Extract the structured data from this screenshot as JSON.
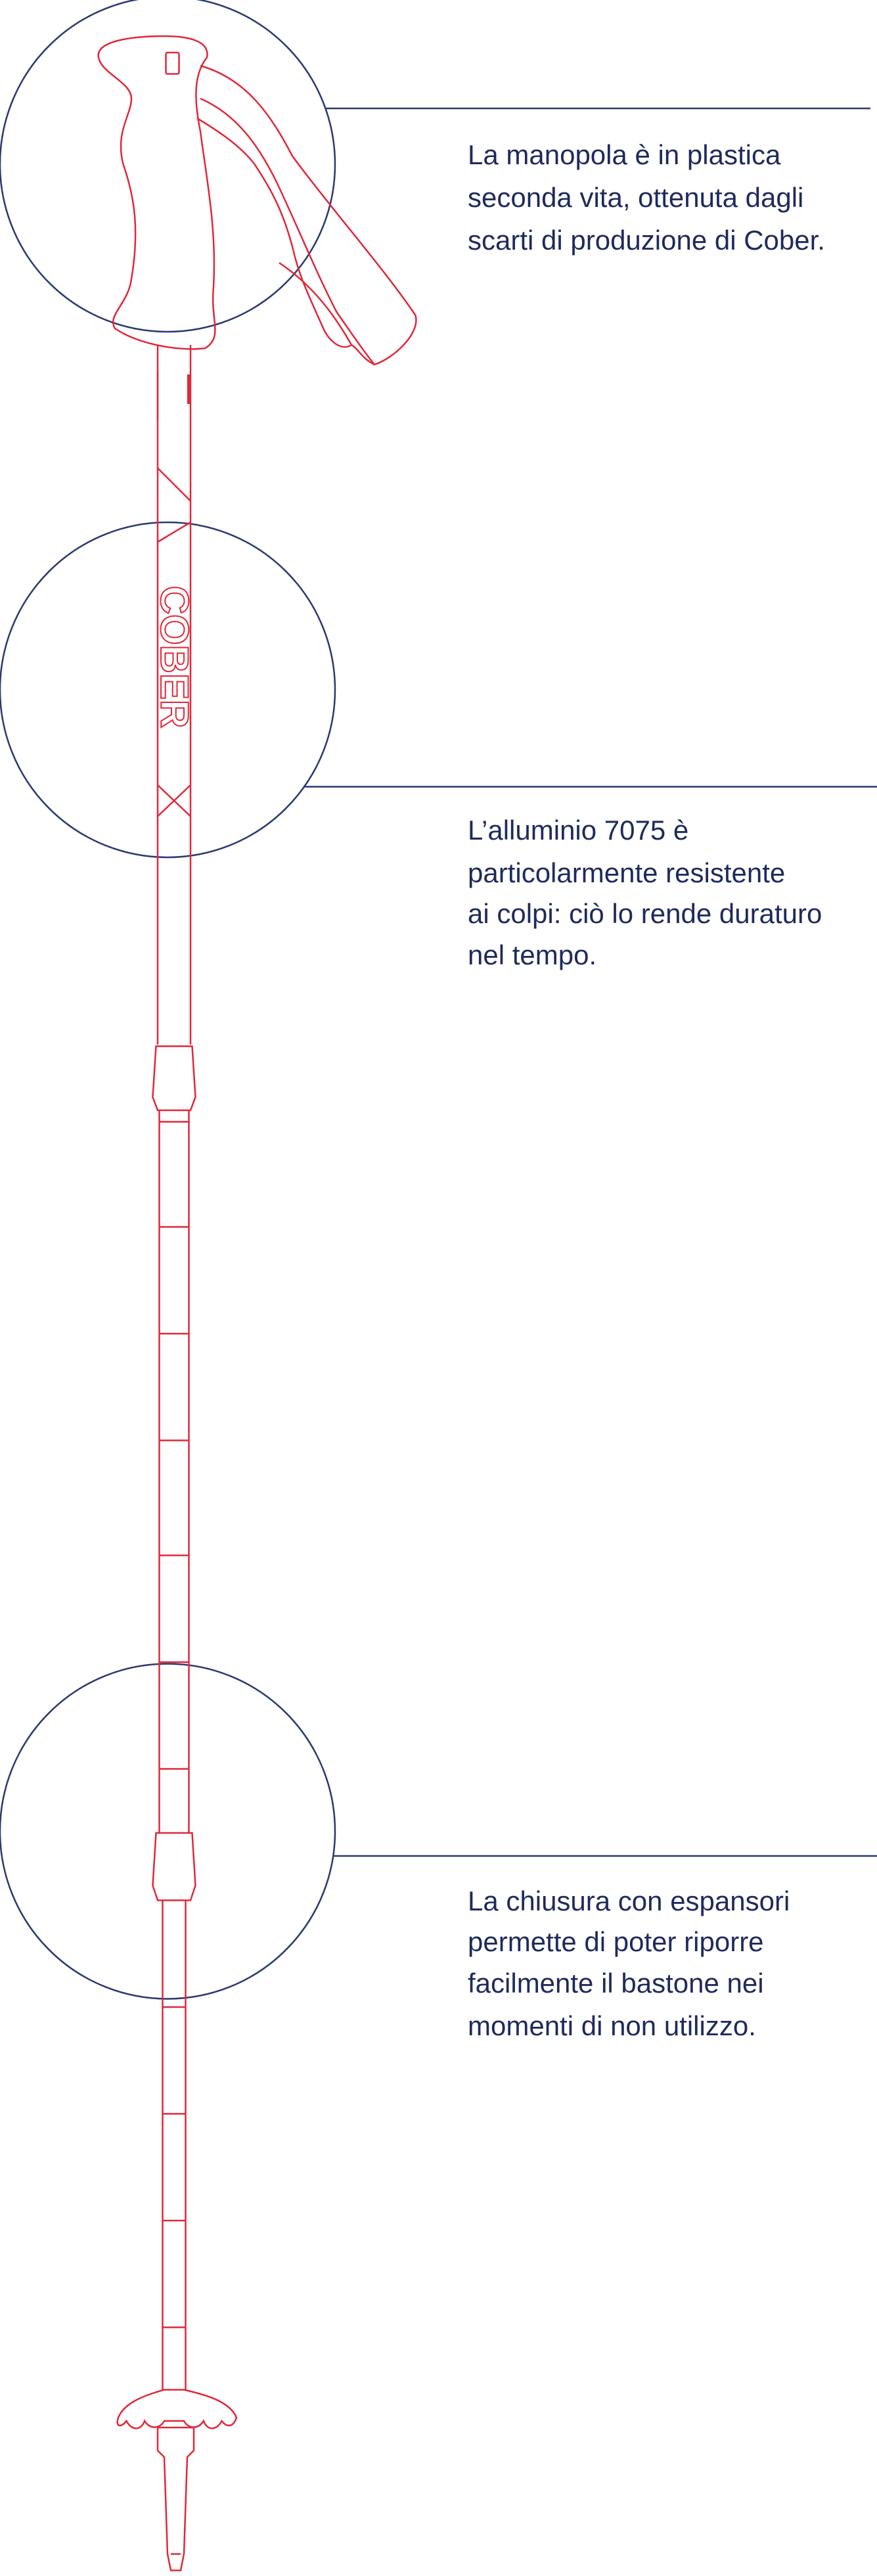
{
  "brand": "COBER",
  "callouts": [
    {
      "lines": [
        "La manopola è in plastica",
        "seconda vita, ottenuta dagli",
        "scarti di produzione di Cober."
      ]
    },
    {
      "lines": [
        "L’alluminio 7075 è",
        "particolarmente resistente",
        "ai colpi: ciò lo rende duraturo",
        "nel tempo."
      ]
    },
    {
      "lines": [
        "La chiusura con espansori",
        "permette di poter riporre",
        "facilmente il bastone nei",
        "momenti di non utilizzo."
      ]
    }
  ]
}
